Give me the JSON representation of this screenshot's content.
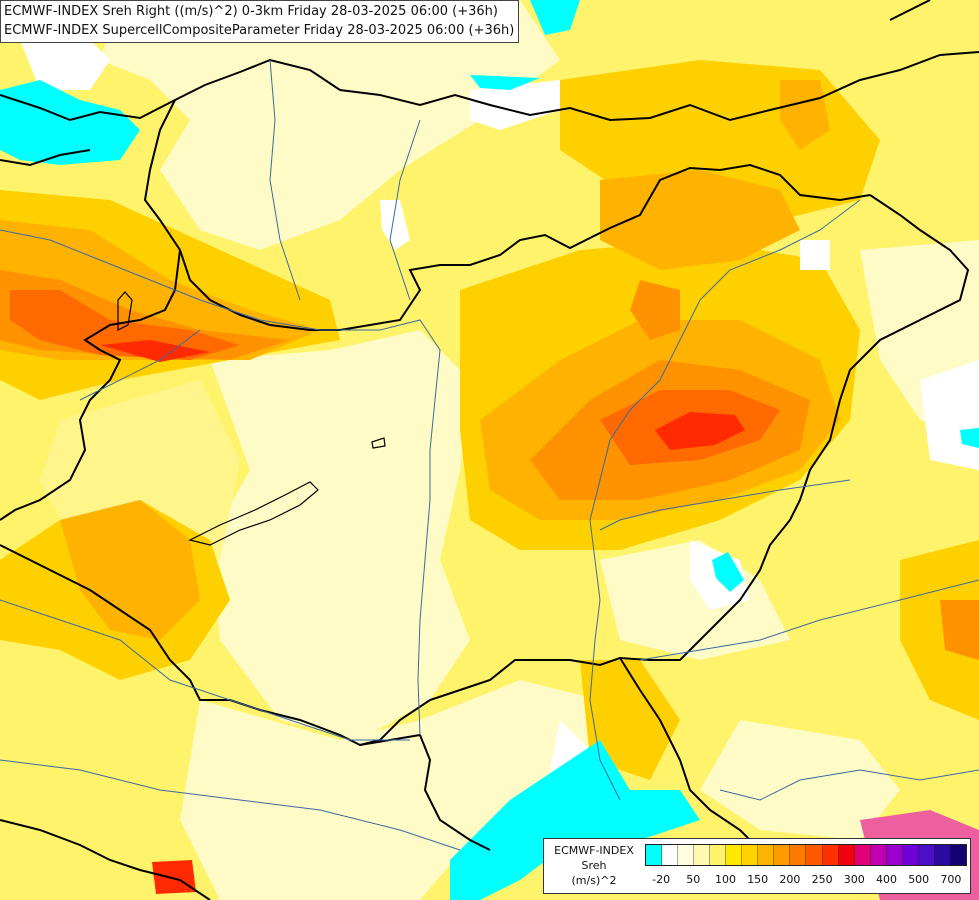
{
  "header": {
    "line1": "ECMWF-INDEX Sreh Right ((m/s)^2) 0-3km Friday 28-03-2025 06:00 (+36h)",
    "line2": "ECMWF-INDEX SupercellCompositeParameter Friday 28-03-2025 06:00 (+36h)"
  },
  "legend": {
    "name_line1": "ECMWF-INDEX",
    "name_line2": "Sreh",
    "name_line3": "(m/s)^2",
    "ticks": [
      "-20",
      "50",
      "100",
      "150",
      "200",
      "250",
      "300",
      "400",
      "500",
      "700"
    ],
    "colors": [
      "#00ffff",
      "#ffffff",
      "#fffde0",
      "#fff8b0",
      "#fff36b",
      "#ffe800",
      "#ffd200",
      "#ffb400",
      "#ff9a00",
      "#ff7a00",
      "#ff5a00",
      "#ff3000",
      "#f00010",
      "#e0007a",
      "#c000b0",
      "#9a00d0",
      "#7000d8",
      "#4a10c8",
      "#2a0aa0",
      "#14006e"
    ]
  },
  "map": {
    "colors": {
      "cyan": "#00ffff",
      "white": "#ffffff",
      "pale": "#fffbc6",
      "light": "#fff58a",
      "yellow": "#ffea00",
      "gold": "#ffd000",
      "amber": "#ffb200",
      "orange": "#ff9200",
      "dark_orange": "#ff6a00",
      "red": "#ff2a00",
      "magenta": "#ee5fa0",
      "border": "#000000",
      "river": "#3a6aa0"
    }
  }
}
